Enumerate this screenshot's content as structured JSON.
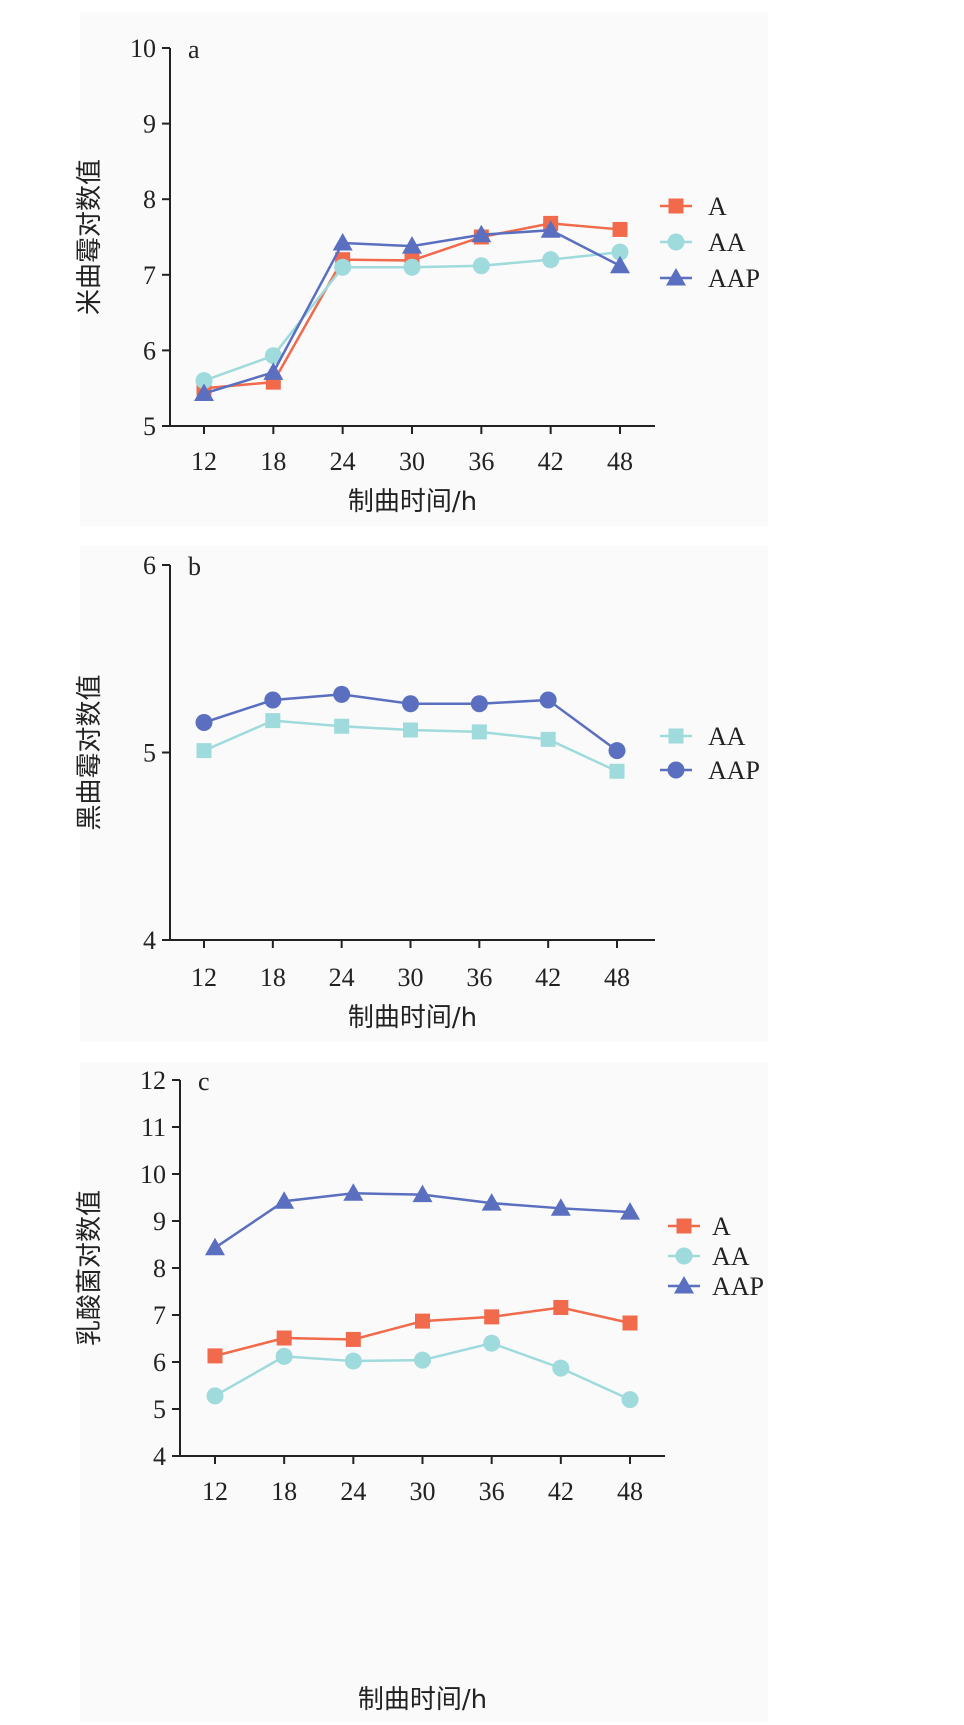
{
  "colors": {
    "A": "#f06a4b",
    "AA": "#9fdadc",
    "AAP": "#5a6fbf",
    "axis": "#222222"
  },
  "chart_data": [
    {
      "type": "line",
      "panel_letter": "a",
      "xlabel": "制曲时间/h",
      "ylabel": "米曲霉对数值",
      "x": [
        12,
        18,
        24,
        30,
        36,
        42,
        48
      ],
      "ylim": [
        5,
        10
      ],
      "yticks": [
        5,
        6,
        7,
        8,
        9,
        10
      ],
      "legend_position": "right",
      "series": [
        {
          "name": "A",
          "marker": "square",
          "color_key": "A",
          "values": [
            5.5,
            5.58,
            7.2,
            7.19,
            7.5,
            7.68,
            7.6
          ]
        },
        {
          "name": "AA",
          "marker": "circle",
          "color_key": "AA",
          "values": [
            5.6,
            5.93,
            7.1,
            7.1,
            7.12,
            7.2,
            7.3
          ]
        },
        {
          "name": "AAP",
          "marker": "triangle",
          "color_key": "AAP",
          "values": [
            5.43,
            5.71,
            7.42,
            7.38,
            7.53,
            7.59,
            7.12
          ]
        }
      ]
    },
    {
      "type": "line",
      "panel_letter": "b",
      "xlabel": "制曲时间/h",
      "ylabel": "黑曲霉对数值",
      "x": [
        12,
        18,
        24,
        30,
        36,
        42,
        48
      ],
      "ylim": [
        4,
        6
      ],
      "yticks": [
        4,
        5,
        6
      ],
      "legend_position": "right",
      "series": [
        {
          "name": "AA",
          "marker": "square",
          "color_key": "AA",
          "values": [
            5.01,
            5.17,
            5.14,
            5.12,
            5.11,
            5.07,
            4.9
          ]
        },
        {
          "name": "AAP",
          "marker": "circle",
          "color_key": "AAP",
          "values": [
            5.16,
            5.28,
            5.31,
            5.26,
            5.26,
            5.28,
            5.01
          ]
        }
      ]
    },
    {
      "type": "line",
      "panel_letter": "c",
      "xlabel": "制曲时间/h",
      "ylabel": "乳酸菌对数值",
      "x": [
        12,
        18,
        24,
        30,
        36,
        42,
        48
      ],
      "ylim": [
        4,
        12
      ],
      "yticks": [
        4,
        5,
        6,
        7,
        8,
        9,
        10,
        11,
        12
      ],
      "legend_position": "right",
      "series": [
        {
          "name": "A",
          "marker": "square",
          "color_key": "A",
          "values": [
            6.13,
            6.51,
            6.48,
            6.87,
            6.96,
            7.16,
            6.83
          ]
        },
        {
          "name": "AA",
          "marker": "circle",
          "color_key": "AA",
          "values": [
            5.28,
            6.12,
            6.02,
            6.04,
            6.4,
            5.87,
            5.2
          ]
        },
        {
          "name": "AAP",
          "marker": "triangle",
          "color_key": "AAP",
          "values": [
            8.43,
            9.42,
            9.59,
            9.56,
            9.38,
            9.27,
            9.19
          ]
        }
      ]
    }
  ]
}
